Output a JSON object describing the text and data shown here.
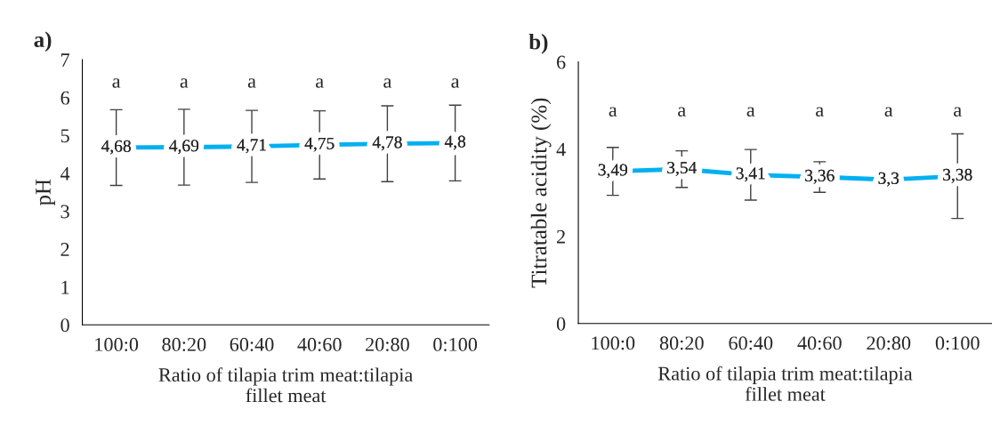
{
  "chart_data": [
    {
      "type": "line",
      "title": "a)",
      "ylabel": "pH",
      "xlabel": "Ratio of tilapia trim meat:tilapia\nfillet meat",
      "categories": [
        "100:0",
        "80:20",
        "60:40",
        "40:60",
        "20:80",
        "0:100"
      ],
      "series": [
        {
          "color": "#00b0f0",
          "values": [
            4.68,
            4.69,
            4.71,
            4.75,
            4.78,
            4.8
          ],
          "errors": [
            1.0,
            1.0,
            0.95,
            0.9,
            1.0,
            1.0
          ],
          "value_labels": [
            "4,68",
            "4,69",
            "4,71",
            "4,75",
            "4,78",
            "4,8"
          ]
        }
      ],
      "ylim": [
        0,
        7
      ],
      "yticks": [
        0,
        1,
        2,
        3,
        4,
        5,
        6,
        7
      ],
      "grid": false,
      "legend": false,
      "line_style": "solid",
      "annotations": [
        "a",
        "a",
        "a",
        "a",
        "a",
        "a"
      ]
    },
    {
      "type": "line",
      "title": "b)",
      "ylabel": "Titratable acidity (%)",
      "xlabel": "Ratio of tilapia trim meat:tilapia\nfillet meat",
      "categories": [
        "100:0",
        "80:20",
        "60:40",
        "40:60",
        "20:80",
        "0:100"
      ],
      "series": [
        {
          "color": "#00b0f0",
          "values": [
            3.49,
            3.54,
            3.41,
            3.36,
            3.3,
            3.38
          ],
          "errors": [
            0.55,
            0.42,
            0.58,
            0.35,
            null,
            0.97
          ],
          "value_labels": [
            "3,49",
            "3,54",
            "3,41",
            "3,36",
            "3,3",
            "3,38"
          ]
        }
      ],
      "ylim": [
        0,
        6
      ],
      "yticks": [
        0,
        2,
        4,
        6
      ],
      "grid": false,
      "legend": false,
      "line_style": "solid",
      "annotations": [
        "a",
        "a",
        "a",
        "a",
        "a",
        "a"
      ]
    }
  ]
}
